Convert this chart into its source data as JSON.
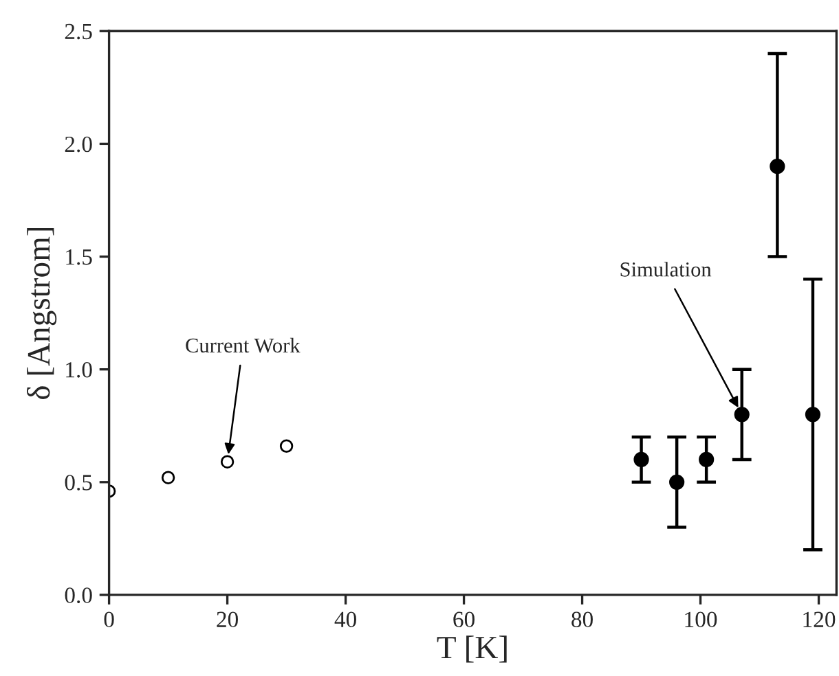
{
  "chart_data": {
    "type": "scatter",
    "xlabel": "T [K]",
    "ylabel": "δ [Angstrom]",
    "xlim": [
      0,
      123
    ],
    "xticks": [
      0,
      20,
      40,
      60,
      80,
      100,
      120
    ],
    "ylim": [
      0,
      2.5
    ],
    "yticks": [
      {
        "value": 0,
        "label": "0.0"
      },
      {
        "value": 0.5,
        "label": "0.5"
      },
      {
        "value": 1.0,
        "label": "1.0"
      },
      {
        "value": 1.5,
        "label": "1.5"
      },
      {
        "value": 2.0,
        "label": "2.0"
      },
      {
        "value": 2.5,
        "label": "2.5"
      }
    ],
    "marker": "circle",
    "grid": false,
    "legend": false,
    "series": [
      {
        "color": "#000000",
        "x": [
          0,
          10,
          20,
          30
        ],
        "values": [
          0.46,
          0.52,
          0.59,
          0.66
        ]
      },
      {
        "color": "#000000",
        "x": [
          90,
          96,
          101,
          107,
          113,
          119
        ],
        "values": [
          0.6,
          0.5,
          0.6,
          0.8,
          1.9,
          0.8
        ],
        "errors": [
          0.1,
          0.2,
          0.1,
          0.2,
          [
            1.5,
            2.4
          ],
          0.6
        ]
      }
    ],
    "annotations": [
      {
        "text": "Current Work",
        "x": 20,
        "y": 0.59
      },
      {
        "text": "Simulation",
        "x": 107,
        "y": 0.8
      }
    ]
  }
}
